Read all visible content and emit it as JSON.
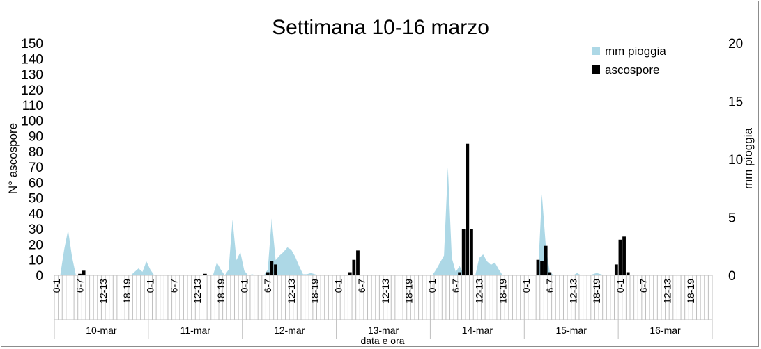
{
  "chart_data": {
    "type": "bar",
    "title": "Settimana 10-16 marzo",
    "xlabel": "data e ora",
    "ylabel_left": "N° ascospore",
    "ylabel_right": "mm pioggia",
    "ylim_left": [
      0,
      150
    ],
    "ylim_right": [
      0,
      20
    ],
    "yticks_left": [
      "0",
      "10",
      "20",
      "30",
      "40",
      "50",
      "60",
      "70",
      "80",
      "90",
      "100",
      "110",
      "120",
      "130",
      "140",
      "150"
    ],
    "yticks_right": [
      "0",
      "5",
      "10",
      "15",
      "20"
    ],
    "grid": false,
    "legend_position": "top-right",
    "slots_per_day": 24,
    "hour_labels": [
      "0-1",
      "6-7",
      "12-13",
      "18-19"
    ],
    "days": [
      "10-mar",
      "11-mar",
      "12-mar",
      "13-mar",
      "14-mar",
      "15-mar",
      "16-mar"
    ],
    "series": [
      {
        "name": "mm pioggia",
        "type": "area",
        "axis": "right",
        "color": "#add8e6",
        "points": [
          [
            0,
            0
          ],
          [
            1,
            0
          ],
          [
            2,
            2.2
          ],
          [
            3,
            3.9
          ],
          [
            4,
            1.6
          ],
          [
            5,
            0
          ],
          [
            19,
            0
          ],
          [
            20,
            0.3
          ],
          [
            21,
            0.6
          ],
          [
            22,
            0.3
          ],
          [
            23,
            1.2
          ],
          [
            24,
            0.5
          ],
          [
            25,
            0
          ],
          [
            40,
            0
          ],
          [
            41,
            1.1
          ],
          [
            42,
            0.5
          ],
          [
            43,
            0
          ],
          [
            44,
            0.5
          ],
          [
            45,
            4.8
          ],
          [
            46,
            1.3
          ],
          [
            47,
            2.0
          ],
          [
            48,
            0.4
          ],
          [
            49,
            0
          ],
          [
            50,
            0.1
          ],
          [
            51,
            0
          ],
          [
            53,
            0
          ],
          [
            54,
            0.5
          ],
          [
            55,
            4.9
          ],
          [
            56,
            1.3
          ],
          [
            57,
            1.7
          ],
          [
            58,
            2.0
          ],
          [
            59,
            2.4
          ],
          [
            60,
            2.2
          ],
          [
            61,
            1.6
          ],
          [
            62,
            0.8
          ],
          [
            63,
            0.1
          ],
          [
            64,
            0.1
          ],
          [
            65,
            0.2
          ],
          [
            66,
            0.1
          ],
          [
            67,
            0
          ],
          [
            96,
            0
          ],
          [
            97,
            0.5
          ],
          [
            98,
            1.1
          ],
          [
            99,
            1.7
          ],
          [
            100,
            9.3
          ],
          [
            101,
            1.5
          ],
          [
            102,
            0.3
          ],
          [
            103,
            0.8
          ],
          [
            104,
            0.1
          ],
          [
            107,
            0
          ],
          [
            108,
            1.5
          ],
          [
            109,
            1.8
          ],
          [
            110,
            1.2
          ],
          [
            111,
            0.9
          ],
          [
            112,
            1.1
          ],
          [
            113,
            0.5
          ],
          [
            114,
            0
          ],
          [
            123,
            0
          ],
          [
            124,
            7.0
          ],
          [
            125,
            2.5
          ],
          [
            126,
            0.3
          ],
          [
            127,
            0
          ],
          [
            132,
            0
          ],
          [
            133,
            0.2
          ],
          [
            134,
            0
          ],
          [
            136,
            0
          ],
          [
            137,
            0.1
          ],
          [
            138,
            0.2
          ],
          [
            140,
            0
          ]
        ]
      },
      {
        "name": "ascospore",
        "type": "bar",
        "axis": "left",
        "color": "#000000",
        "bars": [
          [
            6,
            1
          ],
          [
            7,
            3
          ],
          [
            38,
            1
          ],
          [
            54,
            2
          ],
          [
            55,
            9
          ],
          [
            56,
            7
          ],
          [
            75,
            2
          ],
          [
            76,
            10
          ],
          [
            77,
            16
          ],
          [
            103,
            2
          ],
          [
            104,
            30
          ],
          [
            105,
            85
          ],
          [
            106,
            30
          ],
          [
            123,
            10
          ],
          [
            124,
            9
          ],
          [
            125,
            19
          ],
          [
            126,
            2
          ],
          [
            143,
            7
          ],
          [
            144,
            23
          ],
          [
            145,
            25
          ],
          [
            146,
            2
          ]
        ]
      }
    ]
  }
}
